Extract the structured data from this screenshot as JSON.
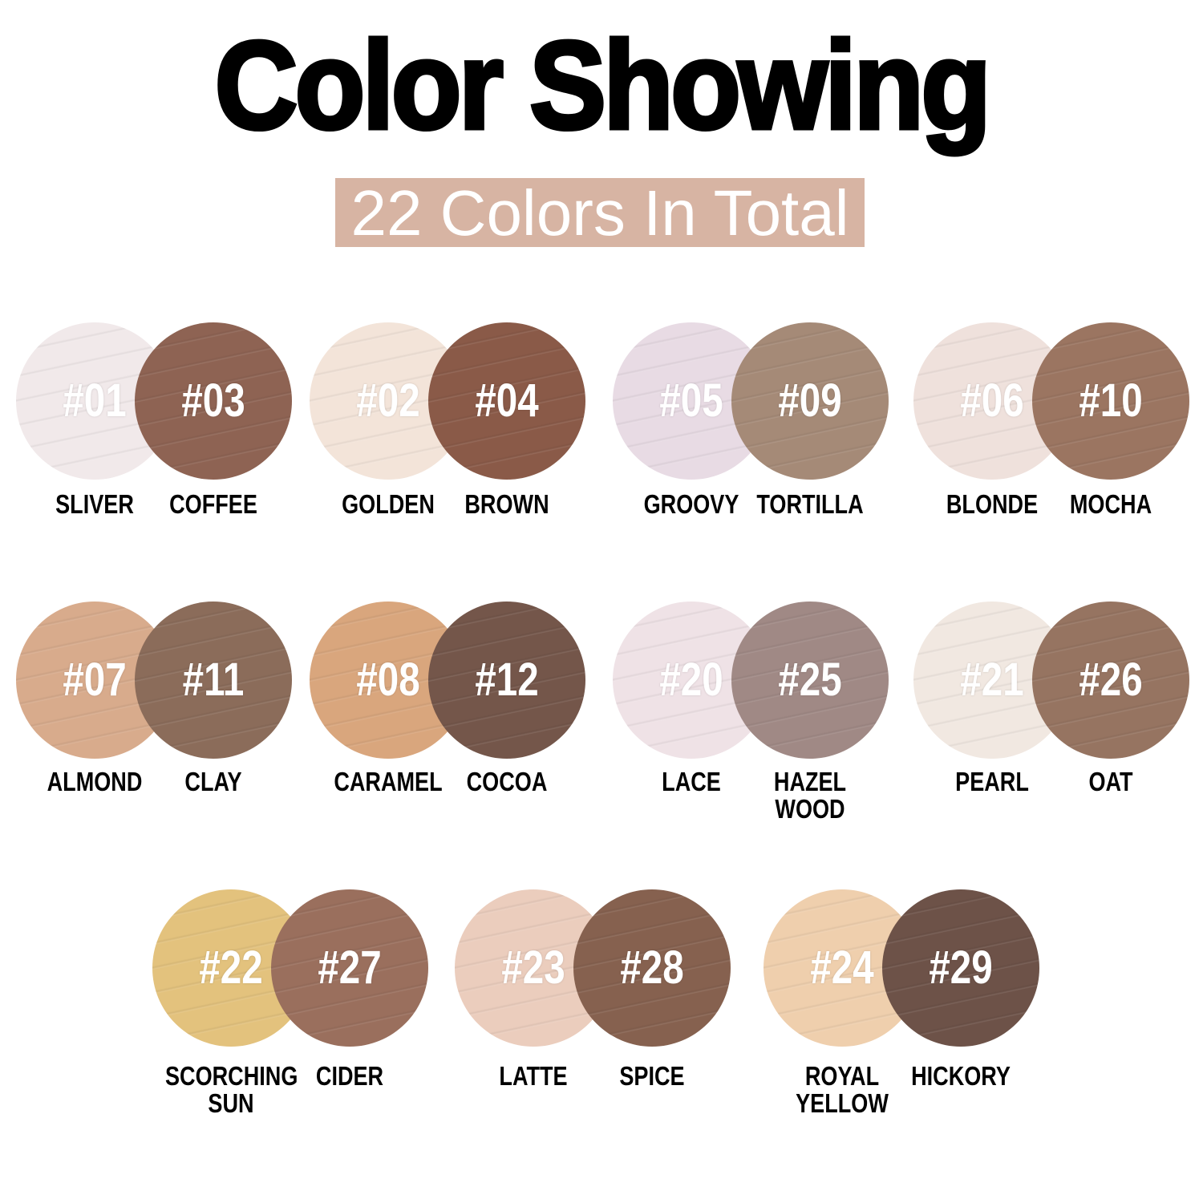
{
  "title": "Color Showing",
  "subtitle": "22 Colors In Total",
  "subtitle_bg": "#d7b4a3",
  "rows": [
    [
      [
        {
          "code": "#01",
          "name": "SLIVER",
          "color": "#f1e9ea"
        },
        {
          "code": "#03",
          "name": "COFFEE",
          "color": "#8e6353"
        }
      ],
      [
        {
          "code": "#02",
          "name": "GOLDEN",
          "color": "#f3e4d9"
        },
        {
          "code": "#04",
          "name": "BROWN",
          "color": "#8a5a48"
        }
      ],
      [
        {
          "code": "#05",
          "name": "GROOVY",
          "color": "#e8dbe4"
        },
        {
          "code": "#09",
          "name": "TORTILLA",
          "color": "#a58a77"
        }
      ],
      [
        {
          "code": "#06",
          "name": "BLONDE",
          "color": "#efe1dc"
        },
        {
          "code": "#10",
          "name": "MOCHA",
          "color": "#9b7561"
        }
      ]
    ],
    [
      [
        {
          "code": "#07",
          "name": "ALMOND",
          "color": "#d8ab8c"
        },
        {
          "code": "#11",
          "name": "CLAY",
          "color": "#8b6c5a"
        }
      ],
      [
        {
          "code": "#08",
          "name": "CARAMEL",
          "color": "#d9a67d"
        },
        {
          "code": "#12",
          "name": "COCOA",
          "color": "#74564a"
        }
      ],
      [
        {
          "code": "#20",
          "name": "LACE",
          "color": "#efe2e6"
        },
        {
          "code": "#25",
          "name": "HAZEL WOOD",
          "color": "#a08985"
        }
      ],
      [
        {
          "code": "#21",
          "name": "PEARL",
          "color": "#f1e8e1"
        },
        {
          "code": "#26",
          "name": "OAT",
          "color": "#967461"
        }
      ]
    ],
    [
      [
        {
          "code": "#22",
          "name": "SCORCHING SUN",
          "color": "#e3c27d"
        },
        {
          "code": "#27",
          "name": "CIDER",
          "color": "#9a6f5d"
        }
      ],
      [
        {
          "code": "#23",
          "name": "LATTE",
          "color": "#ebcdbd"
        },
        {
          "code": "#28",
          "name": "SPICE",
          "color": "#86614f"
        }
      ],
      [
        {
          "code": "#24",
          "name": "ROYAL YELLOW",
          "color": "#efcfad"
        },
        {
          "code": "#29",
          "name": "HICKORY",
          "color": "#6d5248"
        }
      ]
    ]
  ]
}
